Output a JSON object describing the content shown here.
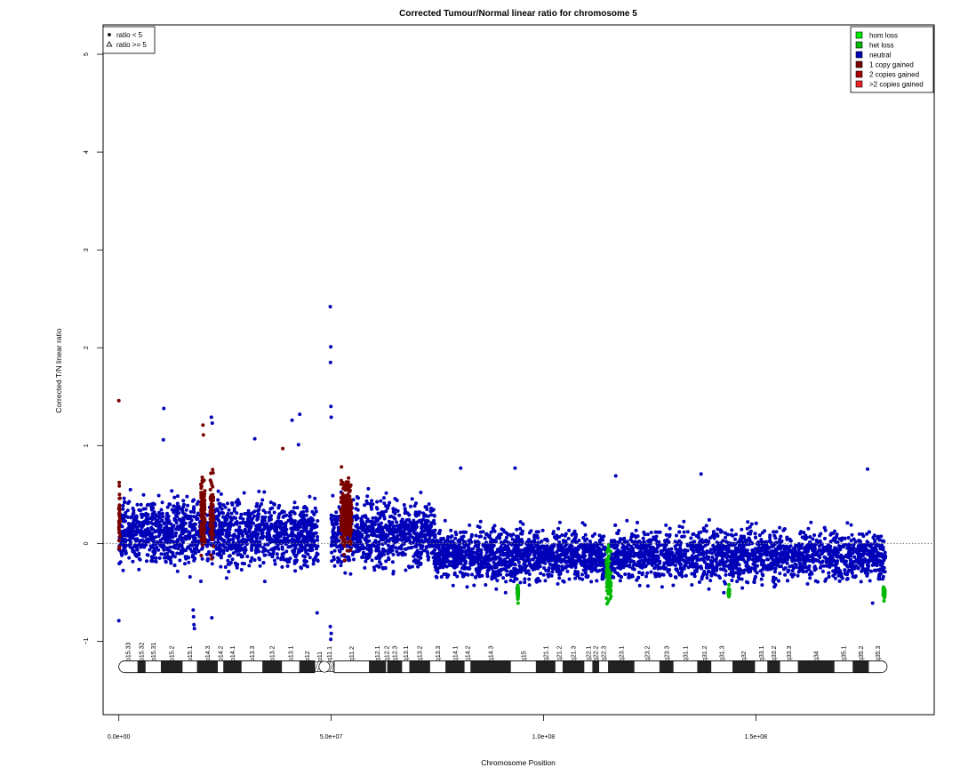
{
  "chart_data": {
    "type": "scatter",
    "title": "Corrected Tumour/Normal linear ratio for chromosome  5",
    "xlabel": "Chromosome Position",
    "ylabel": "Corrected T/N linear ratio",
    "xlim": [
      -3700000,
      192000000
    ],
    "ylim": [
      -1.75,
      5.3
    ],
    "xticks": [
      {
        "value": 0,
        "label": "0.0e+00"
      },
      {
        "value": 50000000,
        "label": "5.0e+07"
      },
      {
        "value": 100000000,
        "label": "1.0e+08"
      },
      {
        "value": 150000000,
        "label": "1.5e+08"
      }
    ],
    "yticks": [
      {
        "value": -1,
        "label": "−1"
      },
      {
        "value": 0,
        "label": "0"
      },
      {
        "value": 1,
        "label": "1"
      },
      {
        "value": 2,
        "label": "2"
      },
      {
        "value": 3,
        "label": "3"
      },
      {
        "value": 4,
        "label": "4"
      },
      {
        "value": 5,
        "label": "5"
      }
    ],
    "reference_line": {
      "y": 0,
      "style": "dotted"
    },
    "shape_legend": {
      "position": "top-left",
      "entries": [
        {
          "symbol": "filled-circle",
          "label": "ratio < 5"
        },
        {
          "symbol": "open-triangle",
          "label": "ratio >= 5"
        }
      ]
    },
    "color_legend": {
      "position": "top-right",
      "entries": [
        {
          "label": "hom loss",
          "color": "#00ee00"
        },
        {
          "label": "het loss",
          "color": "#00b800"
        },
        {
          "label": "neutral",
          "color": "#0000b8"
        },
        {
          "label": "1 copy gained",
          "color": "#7a0000"
        },
        {
          "label": "2 copies gained",
          "color": "#a80000"
        },
        {
          "label": ">2 copies gained",
          "color": "#ee2222"
        }
      ]
    },
    "segments": [
      {
        "start": 0,
        "end": 47000000,
        "median": 0.1,
        "spread": 0.28,
        "state": "neutral"
      },
      {
        "start": 50000000,
        "end": 74500000,
        "median": 0.1,
        "spread": 0.28,
        "state": "neutral"
      },
      {
        "start": 74500000,
        "end": 114800000,
        "median": -0.12,
        "spread": 0.22,
        "state": "neutral"
      },
      {
        "start": 114800000,
        "end": 115900000,
        "median": -0.3,
        "spread": 0.22,
        "state": "het loss"
      },
      {
        "start": 115900000,
        "end": 180500000,
        "median": -0.12,
        "spread": 0.22,
        "state": "neutral"
      },
      {
        "start": 0,
        "end": 300000,
        "median": 0.3,
        "spread": 0.3,
        "state": "1 copy gained"
      },
      {
        "start": 19300000,
        "end": 20300000,
        "median": 0.3,
        "spread": 0.3,
        "state": "1 copy gained"
      },
      {
        "start": 21500000,
        "end": 22300000,
        "median": 0.3,
        "spread": 0.3,
        "state": "1 copy gained"
      },
      {
        "start": 52300000,
        "end": 54800000,
        "median": 0.3,
        "spread": 0.3,
        "state": "1 copy gained"
      },
      {
        "start": 93800000,
        "end": 94100000,
        "median": -0.5,
        "spread": 0.05,
        "state": "het loss"
      },
      {
        "start": 143500000,
        "end": 143800000,
        "median": -0.5,
        "spread": 0.05,
        "state": "het loss"
      },
      {
        "start": 180000000,
        "end": 180400000,
        "median": -0.5,
        "spread": 0.05,
        "state": "het loss"
      }
    ],
    "outliers": [
      {
        "x": 0,
        "y": 1.46,
        "state": "1 copy gained"
      },
      {
        "x": 0,
        "y": -0.79,
        "state": "neutral"
      },
      {
        "x": 10600000,
        "y": 1.38,
        "state": "neutral"
      },
      {
        "x": 10500000,
        "y": 1.06,
        "state": "neutral"
      },
      {
        "x": 17500000,
        "y": -0.68,
        "state": "neutral"
      },
      {
        "x": 17600000,
        "y": -0.75,
        "state": "neutral"
      },
      {
        "x": 17700000,
        "y": -0.83,
        "state": "neutral"
      },
      {
        "x": 17800000,
        "y": -0.87,
        "state": "neutral"
      },
      {
        "x": 19800000,
        "y": 1.21,
        "state": "1 copy gained"
      },
      {
        "x": 19900000,
        "y": 1.11,
        "state": "1 copy gained"
      },
      {
        "x": 21800000,
        "y": 1.29,
        "state": "neutral"
      },
      {
        "x": 22000000,
        "y": 1.23,
        "state": "neutral"
      },
      {
        "x": 21900000,
        "y": -0.76,
        "state": "neutral"
      },
      {
        "x": 32000000,
        "y": 1.07,
        "state": "neutral"
      },
      {
        "x": 38600000,
        "y": 0.97,
        "state": "1 copy gained"
      },
      {
        "x": 40800000,
        "y": 1.26,
        "state": "neutral"
      },
      {
        "x": 42600000,
        "y": 1.32,
        "state": "neutral"
      },
      {
        "x": 42300000,
        "y": 1.01,
        "state": "neutral"
      },
      {
        "x": 46700000,
        "y": -0.71,
        "state": "neutral"
      },
      {
        "x": 49800000,
        "y": 2.42,
        "state": "neutral"
      },
      {
        "x": 49900000,
        "y": 2.01,
        "state": "neutral"
      },
      {
        "x": 49850000,
        "y": 1.85,
        "state": "neutral"
      },
      {
        "x": 49950000,
        "y": 1.4,
        "state": "neutral"
      },
      {
        "x": 50000000,
        "y": 1.29,
        "state": "neutral"
      },
      {
        "x": 49900000,
        "y": -0.98,
        "state": "neutral"
      },
      {
        "x": 50000000,
        "y": -0.92,
        "state": "neutral"
      },
      {
        "x": 49800000,
        "y": -0.85,
        "state": "neutral"
      },
      {
        "x": 80500000,
        "y": 0.77,
        "state": "neutral"
      },
      {
        "x": 93300000,
        "y": 0.77,
        "state": "neutral"
      },
      {
        "x": 94000000,
        "y": -0.61,
        "state": "het loss"
      },
      {
        "x": 117000000,
        "y": 0.69,
        "state": "neutral"
      },
      {
        "x": 137100000,
        "y": 0.71,
        "state": "neutral"
      },
      {
        "x": 176300000,
        "y": 0.76,
        "state": "neutral"
      },
      {
        "x": 177500000,
        "y": -0.61,
        "state": "neutral"
      }
    ]
  },
  "ideogram": {
    "bands": [
      {
        "start": 0,
        "end": 4400000,
        "stain": "gneg",
        "label": "p15.33"
      },
      {
        "start": 4400000,
        "end": 6300000,
        "stain": "gpos",
        "label": "p15.32"
      },
      {
        "start": 6300000,
        "end": 9900000,
        "stain": "gneg",
        "label": "p15.31"
      },
      {
        "start": 9900000,
        "end": 15000000,
        "stain": "gpos",
        "label": "p15.2"
      },
      {
        "start": 15000000,
        "end": 18400000,
        "stain": "gneg",
        "label": "p15.1"
      },
      {
        "start": 18400000,
        "end": 23300000,
        "stain": "gpos",
        "label": "p14.3"
      },
      {
        "start": 23300000,
        "end": 24600000,
        "stain": "gneg",
        "label": "p14.2"
      },
      {
        "start": 24600000,
        "end": 28900000,
        "stain": "gpos",
        "label": "p14.1"
      },
      {
        "start": 28900000,
        "end": 33800000,
        "stain": "gneg",
        "label": "p13.3"
      },
      {
        "start": 33800000,
        "end": 38400000,
        "stain": "gpos",
        "label": "p13.2"
      },
      {
        "start": 38400000,
        "end": 42500000,
        "stain": "gneg",
        "label": "p13.1"
      },
      {
        "start": 42500000,
        "end": 46100000,
        "stain": "gpos",
        "label": "p12"
      },
      {
        "start": 46100000,
        "end": 48400000,
        "stain": "stalk",
        "label": "p11"
      },
      {
        "start": 48400000,
        "end": 50700000,
        "stain": "acen",
        "label": "q11.1"
      },
      {
        "start": 50700000,
        "end": 58900000,
        "stain": "gneg",
        "label": "q11.2"
      },
      {
        "start": 58900000,
        "end": 62900000,
        "stain": "gpos",
        "label": "q12.1"
      },
      {
        "start": 62900000,
        "end": 63200000,
        "stain": "gneg",
        "label": "q12.2"
      },
      {
        "start": 63200000,
        "end": 66700000,
        "stain": "gpos",
        "label": "q12.3"
      },
      {
        "start": 66700000,
        "end": 68400000,
        "stain": "gneg",
        "label": "q13.1"
      },
      {
        "start": 68400000,
        "end": 73300000,
        "stain": "gpos",
        "label": "q13.2"
      },
      {
        "start": 73300000,
        "end": 76900000,
        "stain": "gneg",
        "label": "q13.3"
      },
      {
        "start": 76900000,
        "end": 81400000,
        "stain": "gpos",
        "label": "q14.1"
      },
      {
        "start": 81400000,
        "end": 82800000,
        "stain": "gneg",
        "label": "q14.2"
      },
      {
        "start": 82800000,
        "end": 92300000,
        "stain": "gpos",
        "label": "q14.3"
      },
      {
        "start": 92300000,
        "end": 98200000,
        "stain": "gneg",
        "label": "q15"
      },
      {
        "start": 98200000,
        "end": 102800000,
        "stain": "gpos",
        "label": "q21.1"
      },
      {
        "start": 102800000,
        "end": 104500000,
        "stain": "gneg",
        "label": "q21.2"
      },
      {
        "start": 104500000,
        "end": 109600000,
        "stain": "gpos",
        "label": "q21.3"
      },
      {
        "start": 109600000,
        "end": 111500000,
        "stain": "gneg",
        "label": "q22.1"
      },
      {
        "start": 111500000,
        "end": 113100000,
        "stain": "gpos",
        "label": "q22.2"
      },
      {
        "start": 113100000,
        "end": 115200000,
        "stain": "gneg",
        "label": "q22.3"
      },
      {
        "start": 115200000,
        "end": 121400000,
        "stain": "gpos",
        "label": "q23.1"
      },
      {
        "start": 121400000,
        "end": 127300000,
        "stain": "gneg",
        "label": "q23.2"
      },
      {
        "start": 127300000,
        "end": 130600000,
        "stain": "gpos",
        "label": "q23.3"
      },
      {
        "start": 130600000,
        "end": 136200000,
        "stain": "gneg",
        "label": "q31.1"
      },
      {
        "start": 136200000,
        "end": 139500000,
        "stain": "gpos",
        "label": "q31.2"
      },
      {
        "start": 139500000,
        "end": 144500000,
        "stain": "gneg",
        "label": "q31.3"
      },
      {
        "start": 144500000,
        "end": 149800000,
        "stain": "gpos",
        "label": "q32"
      },
      {
        "start": 149800000,
        "end": 152700000,
        "stain": "gneg",
        "label": "q33.1"
      },
      {
        "start": 152700000,
        "end": 155700000,
        "stain": "gpos",
        "label": "q33.2"
      },
      {
        "start": 155700000,
        "end": 159900000,
        "stain": "gneg",
        "label": "q33.3"
      },
      {
        "start": 159900000,
        "end": 168500000,
        "stain": "gpos",
        "label": "q34"
      },
      {
        "start": 168500000,
        "end": 172800000,
        "stain": "gneg",
        "label": "q35.1"
      },
      {
        "start": 172800000,
        "end": 176600000,
        "stain": "gpos",
        "label": "q35.2"
      },
      {
        "start": 176600000,
        "end": 180900000,
        "stain": "gneg",
        "label": "q35.3"
      }
    ]
  }
}
